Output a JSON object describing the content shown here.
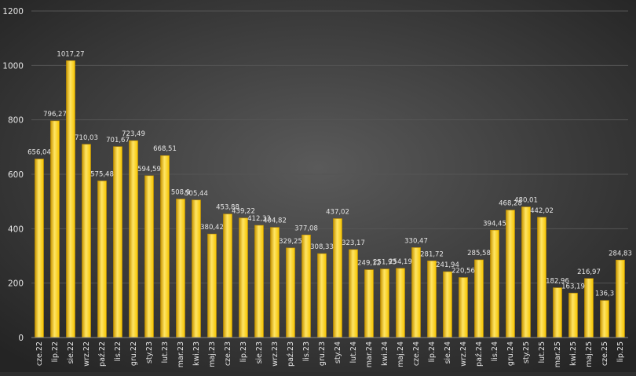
{
  "chart_data": {
    "type": "bar",
    "title": "",
    "xlabel": "",
    "ylabel": "",
    "ylim": [
      0,
      1200
    ],
    "yticks": [
      0,
      200,
      400,
      600,
      800,
      1000,
      1200
    ],
    "grid": true,
    "categories": [
      "cze.22",
      "lip.22",
      "sie.22",
      "wrz.22",
      "paź.22",
      "lis.22",
      "gru.22",
      "sty.23",
      "lut.23",
      "mar.23",
      "kwi.23",
      "maj.23",
      "cze.23",
      "lip.23",
      "sie.23",
      "wrz.23",
      "paź.23",
      "lis.23",
      "gru.23",
      "sty.24",
      "lut.24",
      "mar.24",
      "kwi.24",
      "maj.24",
      "cze.24",
      "lip.24",
      "sie.24",
      "wrz.24",
      "paź.24",
      "lis.24",
      "gru.24",
      "sty.25",
      "lut.25",
      "mar.25",
      "kwi.25",
      "maj.25",
      "cze.25",
      "lip.25"
    ],
    "values": [
      656.04,
      796.27,
      1017.27,
      710.03,
      575.48,
      701.67,
      723.49,
      594.59,
      668.51,
      508.9,
      505.44,
      380.42,
      453.88,
      439.22,
      412.33,
      404.82,
      329.25,
      377.08,
      308.33,
      437.02,
      323.17,
      249.12,
      251.93,
      254.19,
      330.47,
      281.72,
      241.94,
      220.56,
      285.58,
      394.45,
      468.28,
      480.01,
      442.02,
      182.96,
      163.19,
      216.97,
      136.3,
      284.83
    ],
    "data_labels": [
      "656,04",
      "796,27",
      "1017,27",
      "710,03",
      "575,48",
      "701,67",
      "723,49",
      "594,59",
      "668,51",
      "508,9",
      "505,44",
      "380,42",
      "453,88",
      "439,22",
      "412,33",
      "404,82",
      "329,25",
      "377,08",
      "308,33",
      "437,02",
      "323,17",
      "249,12",
      "251,93",
      "254,19",
      "330,47",
      "281,72",
      "241,94",
      "220,56",
      "285,58",
      "394,45",
      "468,28",
      "480,01",
      "442,02",
      "182,96",
      "163,19",
      "216,97",
      "136,3",
      "284,83"
    ],
    "colors": {
      "bar": "#f5c400",
      "bar_light": "#ffe566",
      "bar_dark": "#c99700",
      "background": "#2e2e2e",
      "grid": "#555555",
      "text": "#e6e6e6"
    }
  }
}
